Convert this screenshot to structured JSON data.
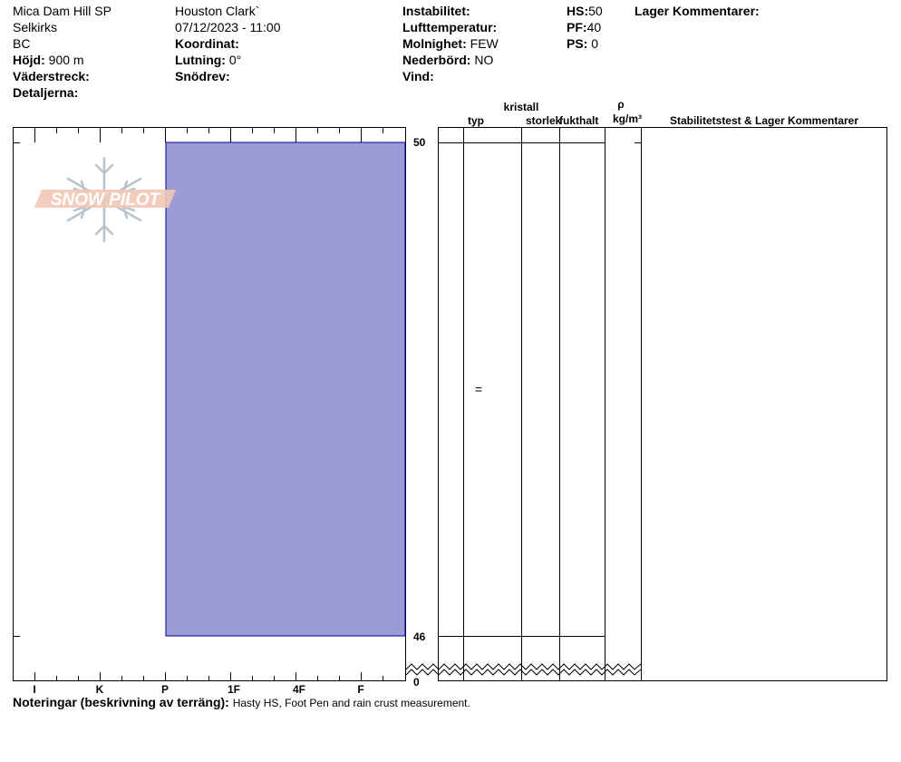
{
  "header": {
    "col1": {
      "site": "Mica Dam Hill SP",
      "range": "Selkirks",
      "region": "BC",
      "elevation_label": "Höjd:",
      "elevation_value": "900 m",
      "aspect_label": "Väderstreck:",
      "details_label": "Detaljerna:"
    },
    "col2": {
      "observer": "Houston Clark`",
      "datetime": "07/12/2023 - 11:00",
      "coord_label": "Koordinat:",
      "slope_label": "Lutning:",
      "slope_value": "0°",
      "drift_label": "Snödrev:"
    },
    "col3": {
      "instability_label": "Instabilitet:",
      "airtemp_label": "Lufttemperatur:",
      "sky_label": "Molnighet:",
      "sky_value": "FEW",
      "precip_label": "Nederbörd:",
      "precip_value": "NO",
      "wind_label": "Vind:"
    },
    "col4": {
      "hs_label": "HS:",
      "hs_value": "50",
      "pf_label": "PF:",
      "pf_value": "40",
      "ps_label": "PS:",
      "ps_value": "0"
    },
    "layer_comments_label": "Lager Kommentarer:"
  },
  "columns": {
    "crystal_label": "kristall",
    "type_label": "typ",
    "size_label": "storlek",
    "moisture_label": "fukthalt",
    "rho_label": "ρ",
    "density_unit": "kg/m³",
    "stability_label": "Stabilitetstest & Lager Kommentarer"
  },
  "logo_text": "SNOW PILOT",
  "notes": {
    "label": "Noteringar (beskrivning av terräng):",
    "value": "Hasty HS, Foot Pen and rain crust measurement."
  },
  "colors": {
    "layer_fill": "#9b9bd7",
    "layer_stroke": "#00008b",
    "logo_fill": "#f1c8b6",
    "logo_flake": "#b9c3cb"
  },
  "chart_data": {
    "type": "bar",
    "title": "",
    "xlabel": "",
    "ylabel": "",
    "hardness_ticks": [
      "I",
      "K",
      "P",
      "1F",
      "4F",
      "F"
    ],
    "height_ticks": [
      50,
      46,
      0
    ],
    "ylim": [
      0,
      50
    ],
    "layers": [
      {
        "top": 50,
        "bottom": 46,
        "hardness": "P",
        "grain_symbol": "="
      }
    ]
  }
}
